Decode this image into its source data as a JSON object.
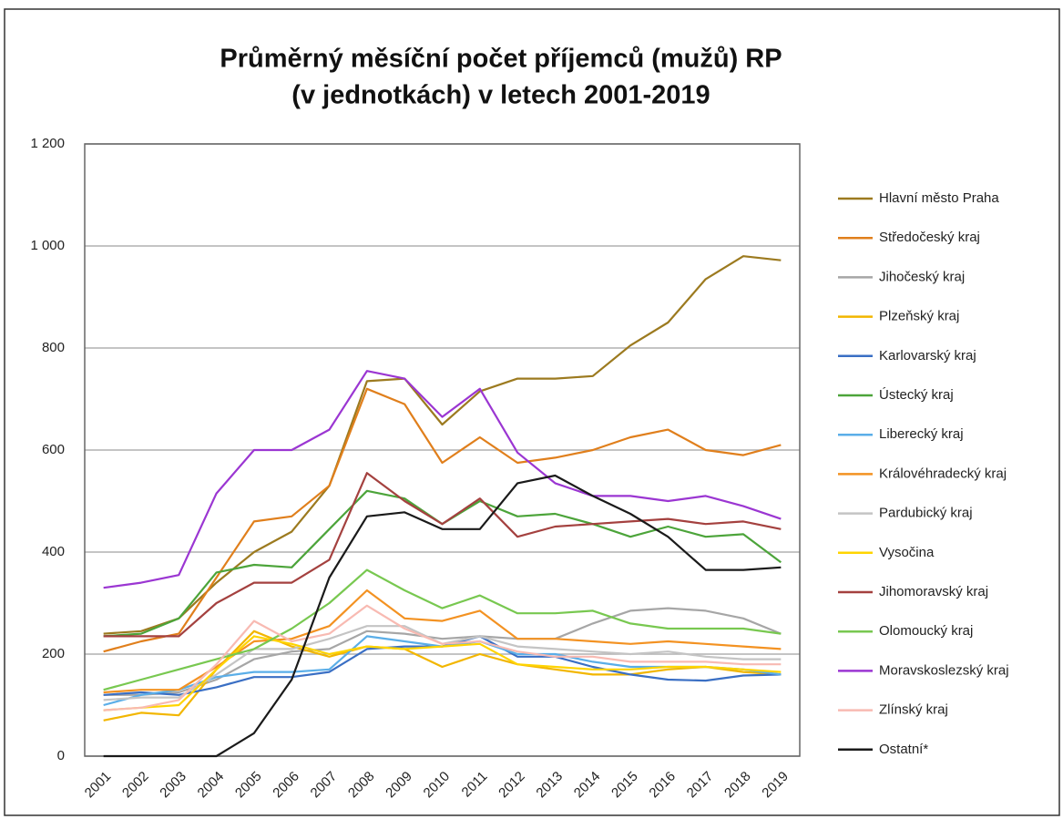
{
  "chart_data": {
    "type": "line",
    "title": [
      "Průměrný měsíční počet příjemců (mužů) RP",
      "(v jednotkách) v letech 2001-2019"
    ],
    "categories": [
      "2001",
      "2002",
      "2003",
      "2004",
      "2005",
      "2006",
      "2007",
      "2008",
      "2009",
      "2010",
      "2011",
      "2012",
      "2013",
      "2014",
      "2015",
      "2016",
      "2017",
      "2018",
      "2019"
    ],
    "ylim": [
      0,
      1200
    ],
    "yticks": [
      0,
      200,
      400,
      600,
      800,
      {
        "value": 1000,
        "label": "1 000"
      },
      {
        "value": 1200,
        "label": "1 200"
      }
    ],
    "grid": true,
    "legend": "right",
    "series": [
      {
        "name": "Hlavní město Praha",
        "color": "#9c7a1f",
        "values": [
          240,
          245,
          270,
          340,
          400,
          440,
          530,
          735,
          740,
          650,
          715,
          740,
          740,
          745,
          805,
          850,
          935,
          980,
          972
        ]
      },
      {
        "name": "Středočeský kraj",
        "color": "#e07f1c",
        "values": [
          205,
          225,
          240,
          350,
          460,
          470,
          530,
          720,
          690,
          575,
          625,
          575,
          585,
          600,
          625,
          640,
          600,
          590,
          610
        ]
      },
      {
        "name": "Jihočeský kraj",
        "color": "#a6a6a6",
        "values": [
          120,
          120,
          125,
          150,
          190,
          205,
          210,
          245,
          240,
          230,
          235,
          230,
          230,
          260,
          285,
          290,
          285,
          270,
          240
        ]
      },
      {
        "name": "Plzeňský kraj",
        "color": "#f2b600",
        "values": [
          70,
          85,
          80,
          170,
          245,
          215,
          195,
          215,
          210,
          175,
          200,
          180,
          170,
          160,
          160,
          170,
          175,
          165,
          160
        ]
      },
      {
        "name": "Karlovarský kraj",
        "color": "#3a6fc4",
        "values": [
          120,
          125,
          120,
          135,
          155,
          155,
          165,
          210,
          215,
          215,
          235,
          195,
          195,
          175,
          160,
          150,
          148,
          158,
          160
        ]
      },
      {
        "name": "Ústecký kraj",
        "color": "#4ca43a",
        "values": [
          235,
          240,
          270,
          360,
          375,
          370,
          445,
          520,
          505,
          455,
          500,
          470,
          475,
          455,
          430,
          450,
          430,
          435,
          380
        ]
      },
      {
        "name": "Liberecký kraj",
        "color": "#5aaee8",
        "values": [
          100,
          120,
          130,
          155,
          165,
          165,
          170,
          235,
          225,
          215,
          225,
          200,
          200,
          185,
          175,
          175,
          175,
          170,
          160
        ]
      },
      {
        "name": "Královéhradecký kraj",
        "color": "#f39222",
        "values": [
          125,
          130,
          130,
          175,
          225,
          230,
          255,
          325,
          270,
          265,
          285,
          230,
          230,
          225,
          220,
          225,
          220,
          215,
          210
        ]
      },
      {
        "name": "Pardubický kraj",
        "color": "#c4c4c4",
        "values": [
          110,
          115,
          115,
          160,
          210,
          210,
          230,
          255,
          255,
          220,
          235,
          215,
          210,
          205,
          200,
          205,
          195,
          190,
          190
        ]
      },
      {
        "name": "Vysočina",
        "color": "#ffd400",
        "values": [
          90,
          95,
          100,
          170,
          235,
          220,
          200,
          215,
          210,
          215,
          220,
          180,
          175,
          170,
          170,
          175,
          175,
          170,
          165
        ]
      },
      {
        "name": "Jihomoravský kraj",
        "color": "#a4413f",
        "values": [
          235,
          235,
          235,
          300,
          340,
          340,
          385,
          555,
          500,
          455,
          505,
          430,
          450,
          455,
          460,
          465,
          455,
          460,
          445
        ]
      },
      {
        "name": "Olomoucký kraj",
        "color": "#78c850",
        "values": [
          130,
          150,
          170,
          190,
          210,
          250,
          300,
          365,
          325,
          290,
          315,
          280,
          280,
          285,
          260,
          250,
          250,
          250,
          240
        ]
      },
      {
        "name": "Moravskoslezský kraj",
        "color": "#9b36d2",
        "values": [
          330,
          340,
          355,
          515,
          600,
          600,
          640,
          755,
          740,
          665,
          720,
          595,
          535,
          510,
          510,
          500,
          510,
          490,
          465
        ]
      },
      {
        "name": "Zlínský kraj",
        "color": "#f8bab2",
        "values": [
          90,
          95,
          110,
          180,
          265,
          225,
          240,
          295,
          250,
          220,
          225,
          205,
          195,
          195,
          185,
          185,
          185,
          180,
          180
        ]
      },
      {
        "name": "Ostatní*",
        "color": "#1a1a1a",
        "values": [
          0,
          0,
          0,
          0,
          45,
          150,
          350,
          470,
          478,
          445,
          445,
          535,
          550,
          510,
          475,
          430,
          365,
          365,
          370
        ]
      }
    ]
  }
}
